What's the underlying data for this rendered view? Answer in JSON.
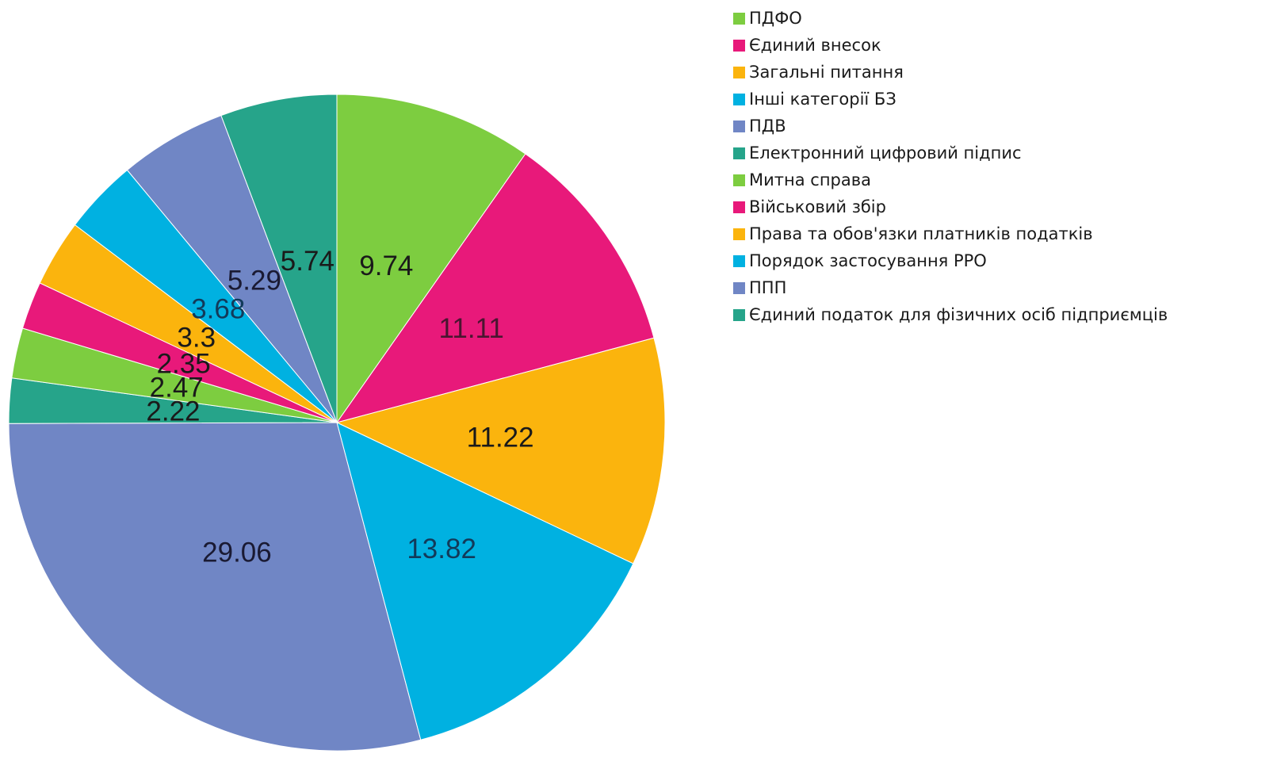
{
  "chart_data": {
    "type": "pie",
    "start": "12 o'clock",
    "direction": "clockwise",
    "legend_position": "right",
    "slices": [
      {
        "label": "ПДФО",
        "value": 9.74,
        "color": "#7dcd40",
        "text_color": "#1a1a1a"
      },
      {
        "label": "Єдиний внесок",
        "value": 11.11,
        "color": "#e8197a",
        "text_color": "#4a1530"
      },
      {
        "label": "Загальні питання",
        "value": 11.22,
        "color": "#fbb40d",
        "text_color": "#1a1a1a"
      },
      {
        "label": "Інші категорії БЗ",
        "value": 13.82,
        "color": "#00b1e1",
        "text_color": "#123a5a"
      },
      {
        "label": "ППП",
        "value": 29.06,
        "color": "#7086c5",
        "text_color": "#1a1a33"
      },
      {
        "label": "Єдиний податок для фізичних осіб підприємців",
        "value": 2.22,
        "color": "#26a48a",
        "text_color": "#1a1a1a"
      },
      {
        "label": "Митна справа",
        "value": 2.47,
        "color": "#7dcd40",
        "text_color": "#1a1a1a"
      },
      {
        "label": "Військовий збір",
        "value": 2.35,
        "color": "#e8197a",
        "text_color": "#1a1a1a"
      },
      {
        "label": "Права та обов'язки платників податків",
        "value": 3.3,
        "color": "#fbb40d",
        "text_color": "#1a1a1a"
      },
      {
        "label": "Порядок застосування РРО",
        "value": 3.68,
        "color": "#00b1e1",
        "text_color": "#123a5a"
      },
      {
        "label": "ПДВ",
        "value": 5.29,
        "color": "#7086c5",
        "text_color": "#1a1a33"
      },
      {
        "label": "Електронний цифровий підпис",
        "value": 5.74,
        "color": "#26a48a",
        "text_color": "#1a1a1a"
      }
    ],
    "legend": [
      {
        "label": "ПДФО",
        "color": "#7dcd40"
      },
      {
        "label": "Єдиний внесок",
        "color": "#e8197a"
      },
      {
        "label": "Загальні питання",
        "color": "#fbb40d"
      },
      {
        "label": "Інші категорії БЗ",
        "color": "#00b1e1"
      },
      {
        "label": "ПДВ",
        "color": "#7086c5"
      },
      {
        "label": "Електронний цифровий підпис",
        "color": "#26a48a"
      },
      {
        "label": "Митна справа",
        "color": "#7dcd40"
      },
      {
        "label": "Військовий збір",
        "color": "#e8197a"
      },
      {
        "label": "Права та обов'язки платників податків",
        "color": "#fbb40d"
      },
      {
        "label": "Порядок застосування РРО",
        "color": "#00b1e1"
      },
      {
        "label": "ППП",
        "color": "#7086c5"
      },
      {
        "label": "Єдиний податок для фізичних осіб підприємців",
        "color": "#26a48a"
      }
    ]
  }
}
